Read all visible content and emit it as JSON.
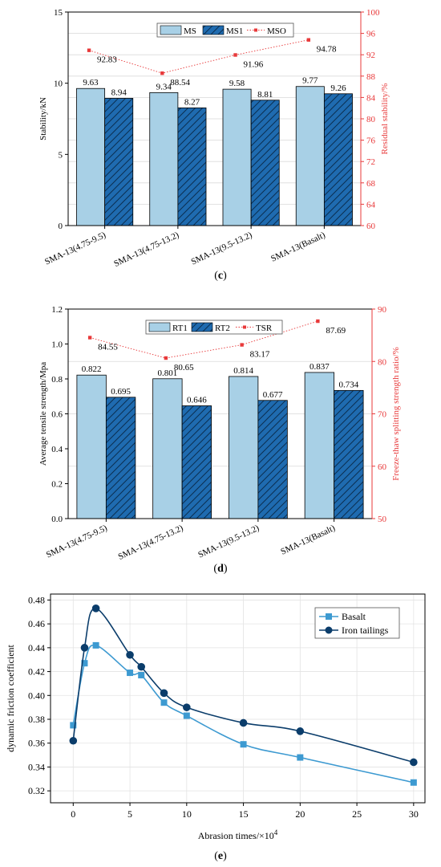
{
  "panels": {
    "c": {
      "caption_letter": "c"
    },
    "d": {
      "caption_letter": "d"
    },
    "e": {
      "caption_letter": "e"
    }
  },
  "colors": {
    "light_bar": "#a8d0e6",
    "dark_bar": "#1f6bb0",
    "red": "#e8393a",
    "basalt": "#3d9ad1",
    "iron": "#0b3d6b",
    "axis": "#000000"
  },
  "chart_data": [
    {
      "id": "c",
      "type": "bar",
      "categories": [
        "SMA-13(4.75-9.5)",
        "SMA-13(4.75-13.2)",
        "SMA-13(9.5-13.2)",
        "SMA-13(Basalt)"
      ],
      "series": [
        {
          "name": "MS",
          "values": [
            9.63,
            9.34,
            9.58,
            9.77
          ]
        },
        {
          "name": "MS1",
          "values": [
            8.94,
            8.27,
            8.81,
            9.26
          ]
        }
      ],
      "line_series": {
        "name": "MSO",
        "values": [
          92.83,
          88.54,
          91.96,
          94.78
        ]
      },
      "ylabel": "Stability/kN",
      "ylim": [
        0,
        15
      ],
      "yticks": [
        0,
        5,
        10,
        15
      ],
      "y2label": "Residual stability/%",
      "y2lim": [
        60,
        100
      ],
      "y2ticks": [
        60,
        64,
        68,
        72,
        76,
        80,
        84,
        88,
        92,
        96,
        100
      ],
      "value_label_format": "fixed2",
      "legend_position": "top-center",
      "grid": true
    },
    {
      "id": "d",
      "type": "bar",
      "categories": [
        "SMA-13(4.75-9.5)",
        "SMA-13(4.75-13.2)",
        "SMA-13(9.5-13.2)",
        "SMA-13(Basalt)"
      ],
      "series": [
        {
          "name": "RT1",
          "values": [
            0.822,
            0.801,
            0.814,
            0.837
          ]
        },
        {
          "name": "RT2",
          "values": [
            0.695,
            0.646,
            0.677,
            0.734
          ]
        }
      ],
      "line_series": {
        "name": "TSR",
        "values": [
          84.55,
          80.65,
          83.17,
          87.69
        ]
      },
      "ylabel": "Average tensile strength/Mpa",
      "ylim": [
        0,
        1.2
      ],
      "yticks": [
        "0.0",
        "0.2",
        "0.4",
        "0.6",
        "0.8",
        "1.0",
        "1.2"
      ],
      "y2label": "Freeze-thaw splitting strength ratio/%",
      "y2lim": [
        50,
        90
      ],
      "y2ticks": [
        50,
        60,
        70,
        80,
        90
      ],
      "value_label_format": "fixed3",
      "legend_position": "top-center",
      "grid": true
    },
    {
      "id": "e",
      "type": "line",
      "xlabel": "Abrasion times/×10",
      "xlabel_sup": "4",
      "ylabel": "dynamic friction coefficient",
      "xlim": [
        -2,
        31
      ],
      "xticks": [
        0,
        5,
        10,
        15,
        20,
        25,
        30
      ],
      "ylim": [
        0.31,
        0.485
      ],
      "yticks": [
        "0.32",
        "0.34",
        "0.36",
        "0.38",
        "0.40",
        "0.42",
        "0.44",
        "0.46",
        "0.48"
      ],
      "series": [
        {
          "name": "Basalt",
          "marker": "square",
          "x": [
            0,
            1,
            2,
            5,
            6,
            8,
            10,
            15,
            20,
            30
          ],
          "y": [
            0.375,
            0.427,
            0.442,
            0.419,
            0.417,
            0.394,
            0.383,
            0.359,
            0.348,
            0.327
          ]
        },
        {
          "name": "Iron tailings",
          "marker": "circle",
          "x": [
            0,
            1,
            2,
            5,
            6,
            8,
            10,
            15,
            20,
            30
          ],
          "y": [
            0.362,
            0.44,
            0.473,
            0.434,
            0.424,
            0.402,
            0.39,
            0.377,
            0.37,
            0.344
          ]
        }
      ],
      "legend_position": "top-right",
      "grid": true
    }
  ]
}
